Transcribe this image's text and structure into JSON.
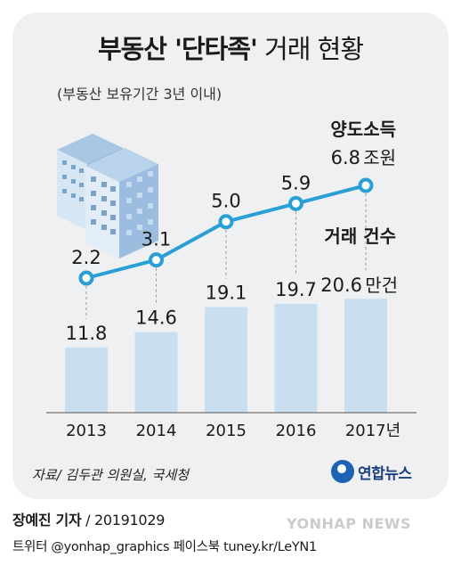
{
  "title_bold": "부동산 '단타족'",
  "title_light": "거래 현황",
  "subtitle": "(부동산 보유기간 3년 이내)",
  "source": "자료/ 김두관 의원실, 국세청",
  "logo_text": "연합뉴스",
  "credit_name": "장예진 기자",
  "credit_date": " / 20191029",
  "social": "트위터 @yonhap_graphics  페이스북 tuney.kr/LeYN1",
  "watermark": "YONHAP NEWS",
  "colors": {
    "card_bg": "#eef0f1",
    "bar": "#c9dff0",
    "line": "#2a9fd6",
    "marker_fill": "#ffffff",
    "text": "#1a1a1a"
  },
  "icons": [
    "building-icon"
  ],
  "chart_data": {
    "type": "bar+line",
    "categories": [
      "2013",
      "2014",
      "2015",
      "2016",
      "2017"
    ],
    "category_suffix_last": "년",
    "series": [
      {
        "name": "거래 건수",
        "type": "bar",
        "values": [
          11.8,
          14.6,
          19.1,
          19.7,
          20.6
        ],
        "labels": [
          "11.8",
          "14.6",
          "19.1",
          "19.7",
          "20.6"
        ],
        "unit": "만건"
      },
      {
        "name": "양도소득",
        "type": "line",
        "values": [
          2.2,
          3.1,
          5.0,
          5.9,
          6.8
        ],
        "labels": [
          "2.2",
          "3.1",
          "5.0",
          "5.9",
          "6.8"
        ],
        "unit": "조원"
      }
    ],
    "grid": false,
    "legend": "inline-right"
  }
}
